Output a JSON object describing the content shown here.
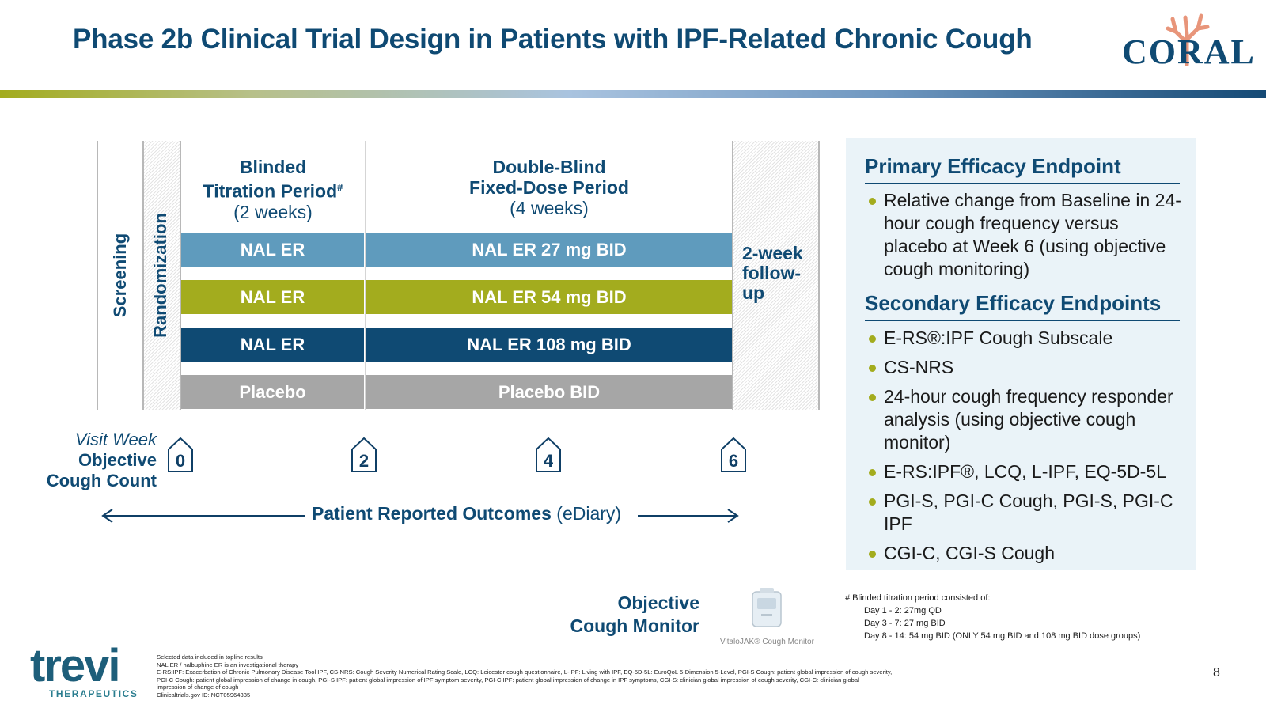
{
  "title": "Phase 2b Clinical Trial Design in Patients with IPF-Related Chronic Cough",
  "coral_logo": "CORAL",
  "trial": {
    "screening": "Screening",
    "randomization": "Randomization",
    "titration_header": {
      "line1": "Blinded",
      "line2": "Titration Period",
      "mark": "#",
      "line3": "(2 weeks)"
    },
    "fixed_header": {
      "line1": "Double-Blind",
      "line2": "Fixed-Dose Period",
      "line3": "(4 weeks)"
    },
    "arms": [
      {
        "titration": "NAL ER",
        "fixed": "NAL ER 27 mg BID",
        "color": "#5f9bbd"
      },
      {
        "titration": "NAL ER",
        "fixed": "NAL ER 54 mg BID",
        "color": "#a3ac1e"
      },
      {
        "titration": "NAL ER",
        "fixed": "NAL ER 108 mg BID",
        "color": "#0f4a73"
      },
      {
        "titration": "Placebo",
        "fixed": "Placebo BID",
        "color": "#a6a6a6"
      }
    ],
    "followup": {
      "line1": "2-week",
      "line2": "follow-",
      "line3": "up"
    }
  },
  "visit": {
    "label_week": "Visit Week",
    "label_obj1": "Objective",
    "label_obj2": "Cough Count",
    "weeks": [
      "0",
      "2",
      "4",
      "6"
    ]
  },
  "pro": {
    "bold": "Patient Reported Outcomes",
    "rest": " (eDiary)"
  },
  "endpoints": {
    "primary_title": "Primary Efficacy Endpoint",
    "primary_items": [
      "Relative change from Baseline in 24-hour cough frequency versus placebo at Week 6 (using objective cough monitoring)"
    ],
    "secondary_title": "Secondary Efficacy Endpoints",
    "secondary_items": [
      "E-RS®:IPF Cough Subscale",
      "CS-NRS",
      "24-hour cough frequency responder analysis (using objective cough monitor)",
      "E-RS:IPF®, LCQ, L-IPF, EQ-5D-5L",
      "PGI-S, PGI-C Cough, PGI-S, PGI-C IPF",
      "CGI-C, CGI-S Cough"
    ]
  },
  "monitor": {
    "line1": "Objective",
    "line2": "Cough Monitor",
    "caption": "VitaloJAK® Cough Monitor"
  },
  "footnote": {
    "title": "# Blinded titration period consisted of:",
    "lines": [
      "Day 1 - 2: 27mg QD",
      "Day 3 - 7: 27 mg BID",
      "Day 8 - 14: 54 mg BID (ONLY 54 mg BID and 108 mg BID dose groups)"
    ]
  },
  "references": [
    "Selected data included in topline results",
    "NAL ER / nalbuphine ER is an investigational therapy",
    "E-RS:IPF: Exacerbation of Chronic Pulmonary Disease Tool IPF, CS-NRS: Cough Severity Numerical Rating Scale, LCQ: Leicester cough questionnaire, L-IPF: Living with IPF, EQ-5D-5L: EuroQoL 5-Dimension 5-Level, PGI-S Cough: patient global impression of cough severity,",
    "PGI-C Cough: patient global impression of change in cough, PGI-S IPF: patient global impression of IPF symptom severity, PGI-C IPF: patient global impression of change in IPF symptoms, CGI-S: clinician global impression of cough severity, CGI-C: clinician global",
    "impression of change of cough",
    "Clinicaltrials.gov ID: NCT05964335"
  ],
  "trevi": {
    "word": "trevi",
    "sub": "THERAPEUTICS"
  },
  "page_number": "8"
}
